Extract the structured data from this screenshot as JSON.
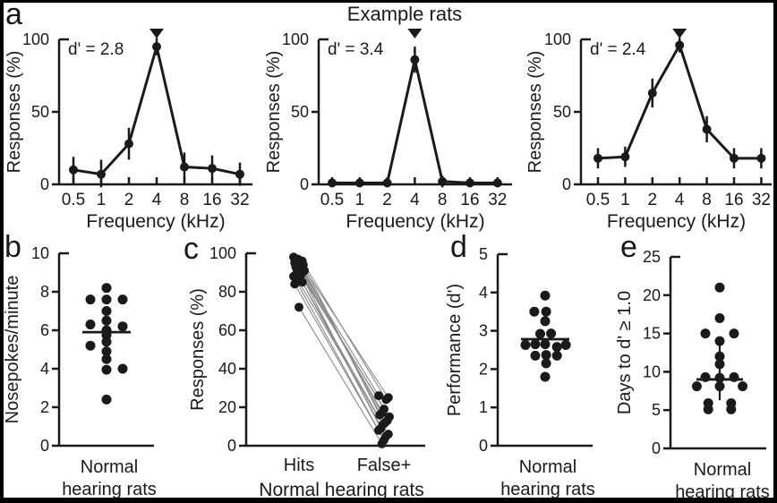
{
  "figure": {
    "title": "Example rats",
    "panel_labels": {
      "a": "a",
      "b": "b",
      "c": "c",
      "d": "d",
      "e": "e"
    },
    "colors": {
      "ink": "#1a1a1a",
      "pair_line": "#8a8a8a",
      "background": "#ffffff"
    }
  },
  "chart_data": [
    {
      "id": "a1",
      "panel": "a",
      "type": "line",
      "dprime_label": "d' = 2.8",
      "categories": [
        "0.5",
        "1",
        "2",
        "4",
        "8",
        "16",
        "32"
      ],
      "values": [
        10,
        7,
        28,
        95,
        12,
        11,
        7
      ],
      "errors": [
        9,
        10,
        11,
        6,
        10,
        9,
        8
      ],
      "target_marker_index": 3,
      "xlabel": "Frequency (kHz)",
      "ylabel": "Responses (%)",
      "ylim": [
        0,
        100
      ],
      "yticks": [
        0,
        50,
        100
      ]
    },
    {
      "id": "a2",
      "panel": "a",
      "type": "line",
      "dprime_label": "d' = 3.4",
      "categories": [
        "0.5",
        "1",
        "2",
        "4",
        "8",
        "16",
        "32"
      ],
      "values": [
        1,
        1,
        1,
        86,
        2,
        1,
        1
      ],
      "errors": [
        3,
        3,
        3,
        9,
        4,
        3,
        3
      ],
      "target_marker_index": 3,
      "xlabel": "Frequency (kHz)",
      "ylabel": "Responses (%)",
      "ylim": [
        0,
        100
      ],
      "yticks": [
        0,
        50,
        100
      ]
    },
    {
      "id": "a3",
      "panel": "a",
      "type": "line",
      "dprime_label": "d' = 2.4",
      "categories": [
        "0.5",
        "1",
        "2",
        "4",
        "8",
        "16",
        "32"
      ],
      "values": [
        18,
        19,
        63,
        96,
        38,
        18,
        18
      ],
      "errors": [
        7,
        7,
        10,
        5,
        9,
        7,
        7
      ],
      "target_marker_index": 3,
      "xlabel": "Frequency (kHz)",
      "ylabel": "Responses (%)",
      "ylim": [
        0,
        100
      ],
      "yticks": [
        0,
        50,
        100
      ]
    },
    {
      "id": "b",
      "panel": "b",
      "type": "scatter",
      "ylabel": "Nosepokes/minute",
      "xlabel_lines": [
        "Normal",
        "hearing rats"
      ],
      "ylim": [
        0,
        10
      ],
      "yticks": [
        0,
        2,
        4,
        6,
        8,
        10
      ],
      "points": [
        [
          0,
          8.2
        ],
        [
          -1,
          7.6
        ],
        [
          0,
          7.6
        ],
        [
          1,
          7.6
        ],
        [
          0,
          7.0
        ],
        [
          0,
          6.5
        ],
        [
          -1,
          6.3
        ],
        [
          1,
          6.2
        ],
        [
          0,
          6.0
        ],
        [
          0,
          5.75
        ],
        [
          0,
          5.4
        ],
        [
          -1,
          5.2
        ],
        [
          0,
          4.9
        ],
        [
          0,
          4.5
        ],
        [
          0,
          3.95
        ],
        [
          1,
          4.0
        ],
        [
          0,
          2.4
        ]
      ],
      "mean": 5.9,
      "err_range": [
        5.4,
        6.2
      ]
    },
    {
      "id": "c",
      "panel": "c",
      "type": "paired",
      "ylabel": "Responses (%)",
      "categories": [
        "Hits",
        "False+"
      ],
      "xlabel": "Normal hearing rats",
      "ylim": [
        0,
        100
      ],
      "yticks": [
        0,
        20,
        40,
        60,
        80,
        100
      ],
      "pairs": [
        [
          98,
          26
        ],
        [
          97,
          25
        ],
        [
          96,
          24
        ],
        [
          95,
          19
        ],
        [
          95,
          17
        ],
        [
          94,
          16
        ],
        [
          93,
          15
        ],
        [
          92,
          13
        ],
        [
          91,
          12
        ],
        [
          90,
          11
        ],
        [
          89,
          9
        ],
        [
          88,
          8
        ],
        [
          86,
          6
        ],
        [
          85,
          5
        ],
        [
          84,
          3
        ],
        [
          72,
          1
        ]
      ]
    },
    {
      "id": "d",
      "panel": "d",
      "type": "scatter",
      "ylabel": "Performance (d')",
      "xlabel_lines": [
        "Normal",
        "hearing rats"
      ],
      "ylim": [
        0,
        5
      ],
      "yticks": [
        0,
        1,
        2,
        3,
        4,
        5
      ],
      "points": [
        [
          0,
          3.92
        ],
        [
          -1.1,
          3.5
        ],
        [
          0.1,
          3.5
        ],
        [
          0,
          3.25
        ],
        [
          -0.5,
          2.92
        ],
        [
          0.6,
          2.93
        ],
        [
          -2,
          2.63
        ],
        [
          -1,
          2.65
        ],
        [
          0,
          2.65
        ],
        [
          1.2,
          2.58
        ],
        [
          2.1,
          2.63
        ],
        [
          -1,
          2.35
        ],
        [
          0.1,
          2.37
        ],
        [
          1.2,
          2.35
        ],
        [
          0.1,
          2.15
        ],
        [
          0,
          1.8
        ]
      ],
      "mean": 2.78
    },
    {
      "id": "e",
      "panel": "e",
      "type": "scatter",
      "ylabel": "Days to d' ≥ 1.0",
      "xlabel_lines": [
        "Normal",
        "hearing rats"
      ],
      "ylim": [
        0,
        25
      ],
      "yticks": [
        0,
        5,
        10,
        15,
        20,
        25
      ],
      "points": [
        [
          0,
          21
        ],
        [
          0,
          17
        ],
        [
          -1,
          15
        ],
        [
          1,
          15
        ],
        [
          0,
          14
        ],
        [
          0,
          12
        ],
        [
          0,
          11
        ],
        [
          -1,
          9.3
        ],
        [
          0,
          9.2
        ],
        [
          1,
          9.3
        ],
        [
          -1.6,
          8.1
        ],
        [
          0,
          8.1
        ],
        [
          1.6,
          8.1
        ],
        [
          -0.8,
          5.9
        ],
        [
          0.8,
          5.9
        ],
        [
          -0.8,
          5.1
        ],
        [
          0.8,
          5.1
        ]
      ],
      "mean": 9,
      "err_range": [
        6.3,
        14
      ]
    }
  ]
}
